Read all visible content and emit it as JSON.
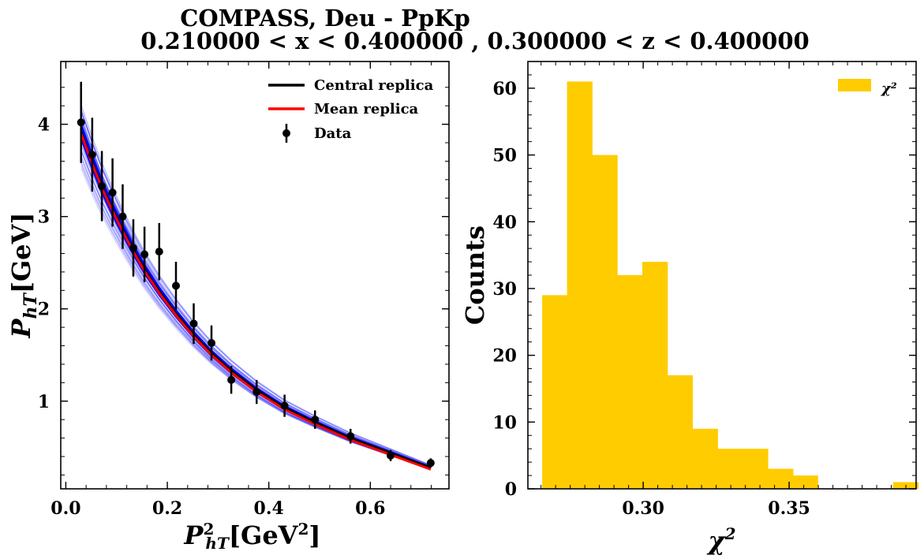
{
  "title_line1": "COMPASS, Deu - PpKp",
  "title_line2": "0.210000 < x < 0.400000 , 0.300000 < z < 0.400000",
  "chart_data": [
    {
      "type": "line",
      "xlabel": "P²hT[GeV²]",
      "ylabel": "PhT[GeV]",
      "xlim": [
        -0.01,
        0.755
      ],
      "ylim": [
        0.05,
        4.68
      ],
      "xticks": [
        0.0,
        0.2,
        0.4,
        0.6
      ],
      "xtick_labels": [
        "0.0",
        "0.2",
        "0.4",
        "0.6"
      ],
      "yticks": [
        1,
        2,
        3,
        4
      ],
      "ytick_labels": [
        "1",
        "2",
        "3",
        "4"
      ],
      "legend_position": "top-right",
      "legend": [
        "Central replica",
        "Mean replica",
        "Data"
      ],
      "colors": {
        "central": "#000000",
        "mean": "#ff0000",
        "replicas": "#0000ff",
        "data": "#000000"
      },
      "data_points": [
        {
          "x": 0.03,
          "y": 4.02,
          "err": 0.44
        },
        {
          "x": 0.052,
          "y": 3.67,
          "err": 0.4
        },
        {
          "x": 0.071,
          "y": 3.33,
          "err": 0.38
        },
        {
          "x": 0.092,
          "y": 3.26,
          "err": 0.37
        },
        {
          "x": 0.112,
          "y": 3.0,
          "err": 0.35
        },
        {
          "x": 0.133,
          "y": 2.66,
          "err": 0.31
        },
        {
          "x": 0.155,
          "y": 2.59,
          "err": 0.3
        },
        {
          "x": 0.184,
          "y": 2.62,
          "err": 0.31
        },
        {
          "x": 0.217,
          "y": 2.25,
          "err": 0.26
        },
        {
          "x": 0.252,
          "y": 1.84,
          "err": 0.22
        },
        {
          "x": 0.287,
          "y": 1.63,
          "err": 0.19
        },
        {
          "x": 0.326,
          "y": 1.23,
          "err": 0.15
        },
        {
          "x": 0.376,
          "y": 1.1,
          "err": 0.13
        },
        {
          "x": 0.431,
          "y": 0.95,
          "err": 0.12
        },
        {
          "x": 0.491,
          "y": 0.8,
          "err": 0.1
        },
        {
          "x": 0.561,
          "y": 0.62,
          "err": 0.08
        },
        {
          "x": 0.64,
          "y": 0.41,
          "err": 0.06
        },
        {
          "x": 0.719,
          "y": 0.33,
          "err": 0.05
        }
      ],
      "central_curve": {
        "x": [
          0.03,
          0.052,
          0.071,
          0.092,
          0.112,
          0.133,
          0.155,
          0.184,
          0.217,
          0.252,
          0.287,
          0.326,
          0.376,
          0.431,
          0.491,
          0.561,
          0.64,
          0.719
        ],
        "y": [
          3.92,
          3.59,
          3.33,
          3.08,
          2.86,
          2.64,
          2.43,
          2.19,
          1.95,
          1.72,
          1.52,
          1.33,
          1.12,
          0.93,
          0.77,
          0.6,
          0.44,
          0.28
        ]
      },
      "mean_curve": {
        "x": [
          0.03,
          0.052,
          0.071,
          0.092,
          0.112,
          0.133,
          0.155,
          0.184,
          0.217,
          0.252,
          0.287,
          0.326,
          0.376,
          0.431,
          0.491,
          0.561,
          0.64,
          0.719
        ],
        "y": [
          3.9,
          3.57,
          3.31,
          3.06,
          2.84,
          2.62,
          2.41,
          2.17,
          1.93,
          1.7,
          1.5,
          1.31,
          1.1,
          0.91,
          0.75,
          0.58,
          0.42,
          0.26
        ]
      }
    },
    {
      "type": "bar",
      "xlabel": "χ²",
      "ylabel": "Counts",
      "xlim": [
        0.2605,
        0.3935
      ],
      "ylim": [
        0,
        64
      ],
      "xticks": [
        0.3,
        0.35
      ],
      "xtick_labels": [
        "0.30",
        "0.35"
      ],
      "yticks": [
        0,
        10,
        20,
        30,
        40,
        50,
        60
      ],
      "ytick_labels": [
        "0",
        "10",
        "20",
        "30",
        "40",
        "50",
        "60"
      ],
      "legend_position": "top-right",
      "legend": [
        "χ²"
      ],
      "color": "#ffcc00",
      "bin_edges": [
        0.2654,
        0.2739,
        0.2825,
        0.2911,
        0.2997,
        0.3083,
        0.3169,
        0.3255,
        0.3341,
        0.3427,
        0.3513,
        0.3598,
        0.3684,
        0.377,
        0.3856,
        0.3942
      ],
      "counts": [
        29,
        61,
        50,
        32,
        34,
        17,
        9,
        6,
        6,
        3,
        2,
        0,
        0,
        0,
        1
      ]
    }
  ]
}
